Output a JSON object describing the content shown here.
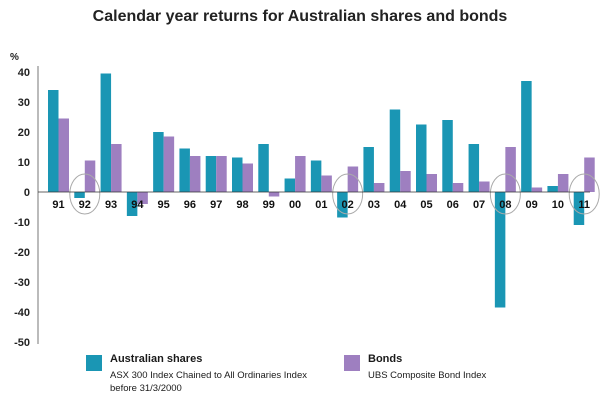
{
  "chart_data": {
    "type": "bar",
    "title": "Calendar year returns for Australian shares and bonds",
    "ylabel": "%",
    "ylim": [
      -50,
      40
    ],
    "yticks": [
      40,
      30,
      20,
      10,
      0,
      -10,
      -20,
      -30,
      -40,
      -50
    ],
    "categories": [
      "91",
      "92",
      "93",
      "94",
      "95",
      "96",
      "97",
      "98",
      "99",
      "00",
      "01",
      "02",
      "03",
      "04",
      "05",
      "06",
      "07",
      "08",
      "09",
      "10",
      "11"
    ],
    "series": [
      {
        "name": "Australian shares",
        "description": [
          "ASX 300 Index Chained to All Ordinaries Index",
          "before 31/3/2000"
        ],
        "color": "#1a96b4",
        "values": [
          34,
          -2,
          39.5,
          -8,
          20,
          14.5,
          12,
          11.5,
          16,
          4.5,
          10.5,
          -8.5,
          15,
          27.5,
          22.5,
          24,
          16,
          -38.5,
          37,
          2,
          -11
        ]
      },
      {
        "name": "Bonds",
        "description": [
          "UBS Composite Bond Index"
        ],
        "color": "#9e7fc0",
        "values": [
          24.5,
          10.5,
          16,
          -4,
          18.5,
          12,
          12,
          9.5,
          -1.5,
          12,
          5.5,
          8.5,
          3,
          7,
          6,
          3,
          3.5,
          15,
          1.5,
          6,
          11.5
        ]
      }
    ],
    "highlighted_categories": [
      "92",
      "02",
      "08",
      "11"
    ],
    "grid": false,
    "legend_position": "bottom"
  }
}
